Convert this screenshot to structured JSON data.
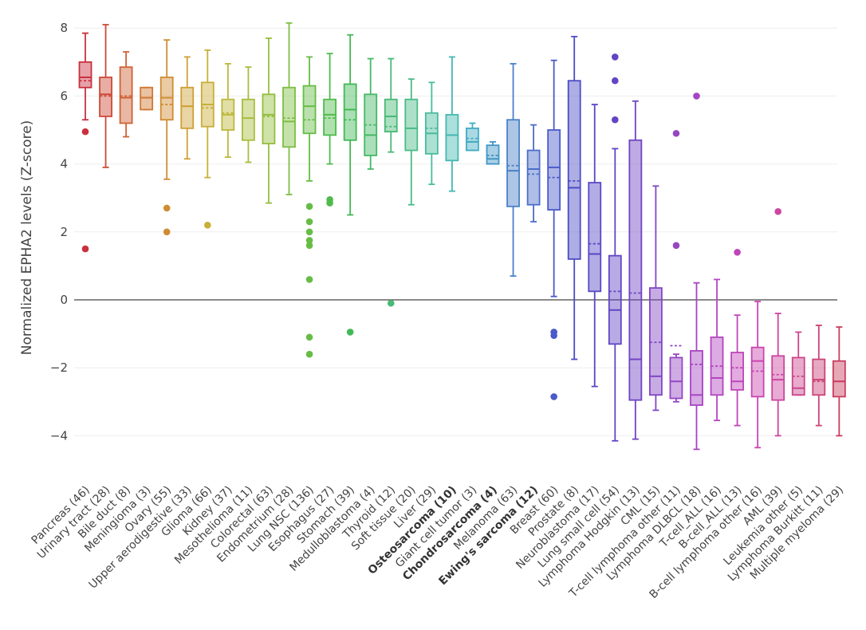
{
  "chart_data": {
    "type": "box",
    "title": "",
    "xlabel": "",
    "ylabel": "Normalized EPHA2 levels (Z-score)",
    "ylim": [
      -5.2,
      8.5
    ],
    "yticks": [
      -4,
      -2,
      0,
      2,
      4,
      6,
      8
    ],
    "ytick_labels": [
      "−4",
      "−2",
      "0",
      "2",
      "4",
      "6",
      "8"
    ],
    "grid": true,
    "zero_line": true,
    "categories": [
      {
        "label": "Pancreas (46)",
        "bold": false,
        "color": "#c9303e",
        "min": 5.3,
        "q1": 6.25,
        "median": 6.55,
        "mean": 6.45,
        "q3": 7.0,
        "max": 7.85,
        "outliers": [
          4.95,
          1.5
        ]
      },
      {
        "label": "Urinary tract (28)",
        "bold": false,
        "color": "#cc4a38",
        "min": 3.9,
        "q1": 5.4,
        "median": 6.05,
        "mean": 6.0,
        "q3": 6.55,
        "max": 8.1,
        "outliers": []
      },
      {
        "label": "Bile duct (8)",
        "bold": false,
        "color": "#cf6236",
        "min": 4.8,
        "q1": 5.2,
        "median": 5.95,
        "mean": 6.0,
        "q3": 6.85,
        "max": 7.3,
        "outliers": []
      },
      {
        "label": "Meningioma (3)",
        "bold": false,
        "color": "#d07934",
        "min": 5.6,
        "q1": 5.6,
        "median": 5.95,
        "mean": 5.95,
        "q3": 6.25,
        "max": 6.25,
        "outliers": []
      },
      {
        "label": "Ovary (55)",
        "bold": false,
        "color": "#d08c33",
        "min": 3.55,
        "q1": 5.3,
        "median": 5.95,
        "mean": 5.75,
        "q3": 6.55,
        "max": 7.65,
        "outliers": [
          2.7,
          2.0
        ]
      },
      {
        "label": "Upper aerodigestive (33)",
        "bold": false,
        "color": "#cfa035",
        "min": 4.15,
        "q1": 5.05,
        "median": 5.7,
        "mean": 5.7,
        "q3": 6.25,
        "max": 7.15,
        "outliers": []
      },
      {
        "label": "Glioma (66)",
        "bold": false,
        "color": "#c9ae37",
        "min": 3.6,
        "q1": 5.1,
        "median": 5.75,
        "mean": 5.65,
        "q3": 6.4,
        "max": 7.35,
        "outliers": [
          2.2
        ]
      },
      {
        "label": "Kidney (37)",
        "bold": false,
        "color": "#bdb83a",
        "min": 4.2,
        "q1": 5.0,
        "median": 5.45,
        "mean": 5.5,
        "q3": 5.9,
        "max": 6.95,
        "outliers": []
      },
      {
        "label": "Mesothelioma (11)",
        "bold": false,
        "color": "#a9bd3d",
        "min": 4.05,
        "q1": 4.7,
        "median": 5.35,
        "mean": 5.35,
        "q3": 5.9,
        "max": 6.85,
        "outliers": []
      },
      {
        "label": "Colorectal (63)",
        "bold": false,
        "color": "#94be3f",
        "min": 2.85,
        "q1": 4.6,
        "median": 5.45,
        "mean": 5.4,
        "q3": 6.05,
        "max": 7.7,
        "outliers": []
      },
      {
        "label": "Endometrium (28)",
        "bold": false,
        "color": "#7ebe42",
        "min": 3.1,
        "q1": 4.5,
        "median": 5.25,
        "mean": 5.35,
        "q3": 6.25,
        "max": 8.15,
        "outliers": []
      },
      {
        "label": "Lung NSC (136)",
        "bold": false,
        "color": "#66bd46",
        "min": 3.5,
        "q1": 4.9,
        "median": 5.7,
        "mean": 5.3,
        "q3": 6.3,
        "max": 7.15,
        "outliers": [
          2.75,
          2.3,
          2.0,
          1.75,
          1.6,
          0.6,
          -1.1,
          -1.6
        ]
      },
      {
        "label": "Esophagus (27)",
        "bold": false,
        "color": "#50bb4c",
        "min": 4.0,
        "q1": 4.85,
        "median": 5.45,
        "mean": 5.35,
        "q3": 5.9,
        "max": 7.25,
        "outliers": [
          2.95,
          2.85
        ]
      },
      {
        "label": "Stomach (39)",
        "bold": false,
        "color": "#42b956",
        "min": 2.5,
        "q1": 4.7,
        "median": 5.6,
        "mean": 5.3,
        "q3": 6.35,
        "max": 7.8,
        "outliers": [
          -0.95
        ]
      },
      {
        "label": "Medulloblastoma (4)",
        "bold": false,
        "color": "#45b965",
        "min": 3.85,
        "q1": 4.25,
        "median": 4.85,
        "mean": 5.15,
        "q3": 6.05,
        "max": 7.1,
        "outliers": []
      },
      {
        "label": "Thyroid (12)",
        "bold": false,
        "color": "#48ba76",
        "min": 4.35,
        "q1": 4.95,
        "median": 5.4,
        "mean": 5.1,
        "q3": 5.9,
        "max": 7.1,
        "outliers": [
          -0.1
        ]
      },
      {
        "label": "Soft tissue (20)",
        "bold": false,
        "color": "#4abb88",
        "min": 2.8,
        "q1": 4.4,
        "median": 5.05,
        "mean": 5.05,
        "q3": 5.9,
        "max": 6.5,
        "outliers": []
      },
      {
        "label": "Liver (29)",
        "bold": false,
        "color": "#48bb9c",
        "min": 3.4,
        "q1": 4.3,
        "median": 4.9,
        "mean": 5.05,
        "q3": 5.5,
        "max": 6.4,
        "outliers": []
      },
      {
        "label": "Osteosarcoma (10)",
        "bold": true,
        "color": "#44b9b0",
        "min": 3.2,
        "q1": 4.1,
        "median": 4.85,
        "mean": 4.85,
        "q3": 5.45,
        "max": 7.15,
        "outliers": []
      },
      {
        "label": "Giant cell tumor (3)",
        "bold": false,
        "color": "#42abc2",
        "min": 4.4,
        "q1": 4.4,
        "median": 4.65,
        "mean": 4.75,
        "q3": 5.05,
        "max": 5.2,
        "outliers": []
      },
      {
        "label": "Chondrosarcoma (4)",
        "bold": true,
        "color": "#4296c6",
        "min": 4.0,
        "q1": 4.0,
        "median": 4.15,
        "mean": 4.25,
        "q3": 4.55,
        "max": 4.65,
        "outliers": []
      },
      {
        "label": "Melanoma (63)",
        "bold": false,
        "color": "#4a80c8",
        "min": 0.7,
        "q1": 2.75,
        "median": 3.8,
        "mean": 3.95,
        "q3": 5.3,
        "max": 6.95,
        "outliers": []
      },
      {
        "label": "Ewing's sarcoma (12)",
        "bold": true,
        "color": "#4c6ec9",
        "min": 2.3,
        "q1": 2.8,
        "median": 3.85,
        "mean": 3.7,
        "q3": 4.4,
        "max": 5.15,
        "outliers": []
      },
      {
        "label": "Breast (60)",
        "bold": false,
        "color": "#4a5ac8",
        "min": 0.1,
        "q1": 2.65,
        "median": 3.9,
        "mean": 3.6,
        "q3": 5.0,
        "max": 7.05,
        "outliers": [
          -0.95,
          -1.05,
          -2.85
        ]
      },
      {
        "label": "Prostate (8)",
        "bold": false,
        "color": "#4b4cc6",
        "min": -1.75,
        "q1": 1.2,
        "median": 3.3,
        "mean": 3.5,
        "q3": 6.45,
        "max": 7.75,
        "outliers": []
      },
      {
        "label": "Neuroblastoma (17)",
        "bold": false,
        "color": "#5748c6",
        "min": -2.55,
        "q1": 0.25,
        "median": 1.35,
        "mean": 1.65,
        "q3": 3.45,
        "max": 5.75,
        "outliers": []
      },
      {
        "label": "Lung small cell (54)",
        "bold": false,
        "color": "#6145c5",
        "min": -4.15,
        "q1": -1.3,
        "median": -0.3,
        "mean": 0.25,
        "q3": 1.3,
        "max": 4.45,
        "outliers": [
          5.3,
          6.45,
          7.15
        ]
      },
      {
        "label": "Lymphoma Hodgkin (13)",
        "bold": false,
        "color": "#7144c4",
        "min": -4.1,
        "q1": -2.95,
        "median": -1.75,
        "mean": 0.2,
        "q3": 4.7,
        "max": 5.85,
        "outliers": []
      },
      {
        "label": "CML (15)",
        "bold": false,
        "color": "#8246c4",
        "min": -3.25,
        "q1": -2.8,
        "median": -2.25,
        "mean": -1.25,
        "q3": 0.35,
        "max": 3.35,
        "outliers": []
      },
      {
        "label": "T-cell lymphoma other (11)",
        "bold": false,
        "color": "#9446c3",
        "min": -3.0,
        "q1": -2.9,
        "median": -2.4,
        "mean": -1.35,
        "q3": -1.7,
        "max": -1.6,
        "outliers": [
          1.6,
          4.9
        ]
      },
      {
        "label": "Lymphoma DLBCL (18)",
        "bold": false,
        "color": "#a645c2",
        "min": -4.4,
        "q1": -3.1,
        "median": -2.8,
        "mean": -1.9,
        "q3": -1.5,
        "max": 0.5,
        "outliers": [
          6.0
        ]
      },
      {
        "label": "T-cell_ALL (16)",
        "bold": false,
        "color": "#b445c0",
        "min": -3.55,
        "q1": -2.8,
        "median": -2.3,
        "mean": -1.95,
        "q3": -1.1,
        "max": 0.6,
        "outliers": []
      },
      {
        "label": "B-cell_ALL (13)",
        "bold": false,
        "color": "#c045bb",
        "min": -3.7,
        "q1": -2.65,
        "median": -2.4,
        "mean": -2.0,
        "q3": -1.55,
        "max": -0.45,
        "outliers": [
          1.4
        ]
      },
      {
        "label": "B-cell lymphoma other (16)",
        "bold": false,
        "color": "#c945b0",
        "min": -4.35,
        "q1": -2.85,
        "median": -1.8,
        "mean": -2.1,
        "q3": -1.4,
        "max": -0.05,
        "outliers": []
      },
      {
        "label": "AML (39)",
        "bold": false,
        "color": "#cc45a0",
        "min": -4.0,
        "q1": -2.95,
        "median": -2.35,
        "mean": -2.2,
        "q3": -1.65,
        "max": -0.4,
        "outliers": [
          2.6
        ]
      },
      {
        "label": "Leukemia other (5)",
        "bold": false,
        "color": "#cc458c",
        "min": -2.8,
        "q1": -2.8,
        "median": -2.6,
        "mean": -2.25,
        "q3": -1.7,
        "max": -0.95,
        "outliers": []
      },
      {
        "label": "Lymphoma Burkitt (11)",
        "bold": false,
        "color": "#cb4378",
        "min": -3.7,
        "q1": -2.8,
        "median": -2.35,
        "mean": -2.4,
        "q3": -1.75,
        "max": -0.75,
        "outliers": []
      },
      {
        "label": "Multiple myeloma (29)",
        "bold": false,
        "color": "#c93d5e",
        "min": -4.0,
        "q1": -2.85,
        "median": -2.4,
        "mean": -2.4,
        "q3": -1.8,
        "max": -0.8,
        "outliers": []
      }
    ]
  }
}
